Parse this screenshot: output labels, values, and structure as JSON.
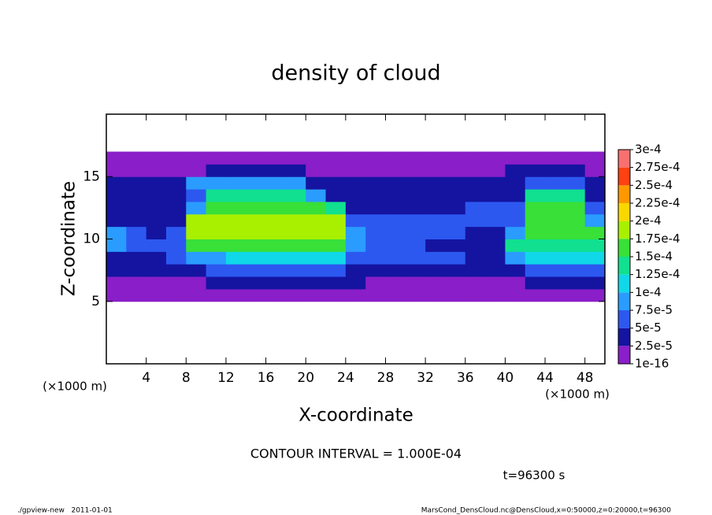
{
  "chart_data": {
    "type": "heatmap",
    "title": "density of cloud",
    "x_label": "X-coordinate",
    "y_label": "Z-coordinate",
    "x_unit_label": "(×1000 m)",
    "y_unit_label": "(×1000 m)",
    "xlim": [
      0,
      50
    ],
    "ylim": [
      0,
      20
    ],
    "xticks": [
      4,
      8,
      12,
      16,
      20,
      24,
      28,
      32,
      36,
      40,
      44,
      48
    ],
    "yticks": [
      5,
      10,
      15
    ],
    "x_bins": [
      0,
      2,
      4,
      6,
      8,
      10,
      12,
      14,
      16,
      18,
      20,
      22,
      24,
      26,
      28,
      30,
      32,
      34,
      36,
      38,
      40,
      42,
      44,
      46,
      48,
      50
    ],
    "y_bins": [
      5,
      6,
      7,
      8,
      9,
      10,
      11,
      12,
      13,
      14,
      15,
      16,
      17
    ],
    "values": [
      [
        1e-05,
        1e-05,
        1e-05,
        1e-05,
        1e-05,
        1e-05,
        1e-05,
        1e-05,
        1e-05,
        1e-05,
        1e-05,
        1e-05,
        1e-05,
        1e-05,
        1e-05,
        1e-05,
        1e-05,
        1e-05,
        1e-05,
        1e-05,
        1e-05,
        1e-05,
        1e-05,
        1e-05,
        1e-05
      ],
      [
        2e-05,
        2e-05,
        2e-05,
        2e-05,
        2e-05,
        3e-05,
        3e-05,
        3e-05,
        3e-05,
        3e-05,
        3e-05,
        3e-05,
        3e-05,
        2e-05,
        2e-05,
        2e-05,
        2e-05,
        2e-05,
        2e-05,
        2e-05,
        2e-05,
        3e-05,
        3e-05,
        3e-05,
        3e-05
      ],
      [
        3e-05,
        3e-05,
        3e-05,
        3e-05,
        3e-05,
        5.5e-05,
        5.5e-05,
        5.5e-05,
        5.5e-05,
        5.5e-05,
        5.5e-05,
        5.5e-05,
        3e-05,
        3e-05,
        3e-05,
        3e-05,
        3e-05,
        3e-05,
        3e-05,
        3e-05,
        3e-05,
        5.5e-05,
        5.5e-05,
        5.5e-05,
        5.5e-05
      ],
      [
        3e-05,
        3e-05,
        3e-05,
        6e-05,
        8e-05,
        8e-05,
        0.00012,
        0.00012,
        0.00012,
        0.00012,
        0.00012,
        0.00012,
        6e-05,
        6e-05,
        6e-05,
        6e-05,
        6e-05,
        6e-05,
        4e-05,
        4e-05,
        8e-05,
        0.00011,
        0.00011,
        0.00011,
        0.00011
      ],
      [
        9e-05,
        6e-05,
        5e-05,
        7e-05,
        0.00016,
        0.00016,
        0.00016,
        0.00016,
        0.00016,
        0.00016,
        0.00016,
        0.00016,
        9e-05,
        6e-05,
        6e-05,
        6e-05,
        4e-05,
        4e-05,
        4e-05,
        4e-05,
        0.00014,
        0.00014,
        0.00014,
        0.00014,
        0.00014
      ],
      [
        8e-05,
        5e-05,
        4e-05,
        6e-05,
        0.00018,
        0.00018,
        0.00018,
        0.00018,
        0.00018,
        0.00018,
        0.00018,
        0.00018,
        8e-05,
        5e-05,
        5e-05,
        5e-05,
        5e-05,
        5e-05,
        4e-05,
        4e-05,
        8e-05,
        0.00017,
        0.00017,
        0.00017,
        0.00017
      ],
      [
        4e-05,
        4e-05,
        4e-05,
        4e-05,
        0.00018,
        0.00018,
        0.00018,
        0.00018,
        0.00018,
        0.00018,
        0.00018,
        0.00018,
        6e-05,
        5e-05,
        5e-05,
        5e-05,
        5e-05,
        5e-05,
        6e-05,
        6e-05,
        6e-05,
        0.00017,
        0.00017,
        0.00017,
        8e-05
      ],
      [
        3e-05,
        3e-05,
        3e-05,
        3e-05,
        8e-05,
        0.00017,
        0.00017,
        0.00017,
        0.00017,
        0.00017,
        0.00017,
        0.00013,
        4e-05,
        4e-05,
        4e-05,
        4e-05,
        4e-05,
        4e-05,
        5e-05,
        5e-05,
        5e-05,
        0.00016,
        0.00016,
        0.00016,
        6e-05
      ],
      [
        3e-05,
        3e-05,
        3e-05,
        3e-05,
        5e-05,
        0.00014,
        0.00014,
        0.00014,
        0.00014,
        0.00014,
        9e-05,
        3e-05,
        3e-05,
        3e-05,
        3e-05,
        3e-05,
        3e-05,
        3e-05,
        4e-05,
        4e-05,
        4e-05,
        0.00013,
        0.00013,
        0.00013,
        4e-05
      ],
      [
        2.5e-05,
        2.5e-05,
        2.5e-05,
        2.5e-05,
        8e-05,
        8e-05,
        8e-05,
        8e-05,
        8e-05,
        8e-05,
        2.5e-05,
        2.5e-05,
        2.5e-05,
        2.5e-05,
        2.5e-05,
        2.5e-05,
        2.5e-05,
        2.5e-05,
        2.5e-05,
        2.5e-05,
        2.5e-05,
        7e-05,
        7e-05,
        7e-05,
        2.5e-05
      ],
      [
        1.5e-05,
        1.5e-05,
        1.5e-05,
        1.5e-05,
        1.5e-05,
        3e-05,
        3e-05,
        3e-05,
        3e-05,
        3e-05,
        1.5e-05,
        1.5e-05,
        1.5e-05,
        1.5e-05,
        1.5e-05,
        1.5e-05,
        1.5e-05,
        1.5e-05,
        1.5e-05,
        1.5e-05,
        3e-05,
        3e-05,
        3e-05,
        3e-05,
        1.5e-05
      ],
      [
        1e-05,
        1e-05,
        1e-05,
        1e-05,
        1e-05,
        1e-05,
        1e-05,
        1e-05,
        1e-05,
        1e-05,
        1e-05,
        1e-05,
        1e-05,
        1e-05,
        1e-05,
        1e-05,
        1e-05,
        1e-05,
        1e-05,
        1e-05,
        1e-05,
        1e-05,
        1e-05,
        1e-05,
        1e-05
      ]
    ],
    "levels": [
      {
        "value": 1e-16,
        "label": "1e-16"
      },
      {
        "value": 2.5e-05,
        "label": "2.5e-5"
      },
      {
        "value": 5e-05,
        "label": "5e-5"
      },
      {
        "value": 7.5e-05,
        "label": "7.5e-5"
      },
      {
        "value": 0.0001,
        "label": "1e-4"
      },
      {
        "value": 0.000125,
        "label": "1.25e-4"
      },
      {
        "value": 0.00015,
        "label": "1.5e-4"
      },
      {
        "value": 0.000175,
        "label": "1.75e-4"
      },
      {
        "value": 0.0002,
        "label": "2e-4"
      },
      {
        "value": 0.000225,
        "label": "2.25e-4"
      },
      {
        "value": 0.00025,
        "label": "2.5e-4"
      },
      {
        "value": 0.000275,
        "label": "2.75e-4"
      },
      {
        "value": 0.0003,
        "label": "3e-4"
      }
    ],
    "level_colors": [
      "#8a1ec8",
      "#1414a0",
      "#2c58f0",
      "#2a9cff",
      "#10d8e8",
      "#10e090",
      "#38e038",
      "#a8f000",
      "#f8d800",
      "#ff9800",
      "#ff4010",
      "#f87070"
    ],
    "contour_interval_label": "CONTOUR INTERVAL = 1.000E-04",
    "time_label": "t=96300 s",
    "footer_left": "./gpview-new   2011-01-01",
    "footer_right": "MarsCond_DensCloud.nc@DensCloud,x=0:50000,z=0:20000,t=96300"
  }
}
